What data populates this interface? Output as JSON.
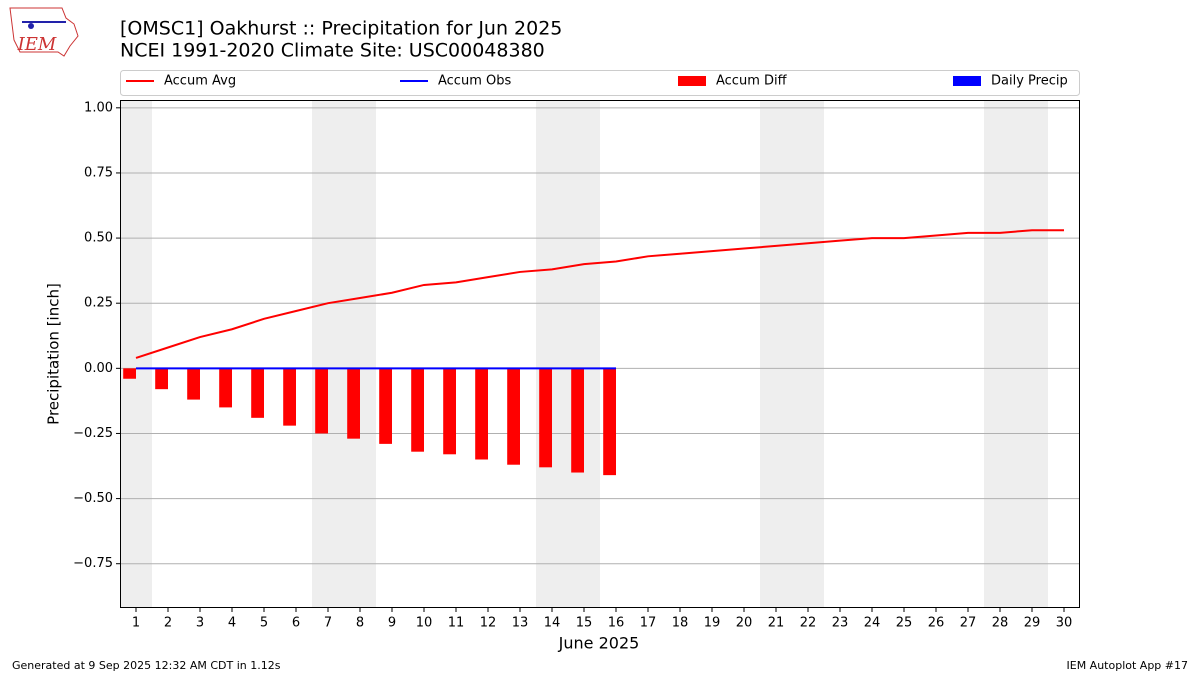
{
  "logo_text": "IEM",
  "footer_left": "Generated at 9 Sep 2025 12:32 AM CDT in 1.12s",
  "footer_right": "IEM Autoplot App #17",
  "chart_data": {
    "type": "bar",
    "title": "[OMSC1] Oakhurst :: Precipitation for Jun 2025",
    "subtitle": "NCEI 1991-2020 Climate Site: USC00048380",
    "xlabel": "June 2025",
    "ylabel": "Precipitation [inch]",
    "x": [
      1,
      2,
      3,
      4,
      5,
      6,
      7,
      8,
      9,
      10,
      11,
      12,
      13,
      14,
      15,
      16,
      17,
      18,
      19,
      20,
      21,
      22,
      23,
      24,
      25,
      26,
      27,
      28,
      29,
      30
    ],
    "xlim": [
      0.5,
      30.5
    ],
    "xticks": [
      1,
      2,
      3,
      4,
      5,
      6,
      7,
      8,
      9,
      10,
      11,
      12,
      13,
      14,
      15,
      16,
      17,
      18,
      19,
      20,
      21,
      22,
      23,
      24,
      25,
      26,
      27,
      28,
      29,
      30
    ],
    "ylim": [
      -0.92,
      1.03
    ],
    "yticks": [
      {
        "value": -0.75,
        "label": "−0.75"
      },
      {
        "value": -0.5,
        "label": "−0.50"
      },
      {
        "value": -0.25,
        "label": "−0.25"
      },
      {
        "value": 0,
        "label": "0.00"
      },
      0.25,
      {
        "value": 0.5,
        "label": "0.50"
      },
      0.75,
      {
        "value": 1,
        "label": "1.00"
      }
    ],
    "grid": true,
    "series": [
      {
        "name": "Accum Avg",
        "type": "line",
        "color": "#ff0000",
        "values": [
          0.04,
          0.08,
          0.12,
          0.15,
          0.19,
          0.22,
          0.25,
          0.27,
          0.29,
          0.32,
          0.33,
          0.35,
          0.37,
          0.38,
          0.4,
          0.41,
          0.43,
          0.44,
          0.45,
          0.46,
          0.47,
          0.48,
          0.49,
          0.5,
          0.5,
          0.51,
          0.52,
          0.52,
          0.53,
          0.53
        ]
      },
      {
        "name": "Accum Obs",
        "type": "line",
        "color": "#0000ff",
        "values": [
          0,
          0,
          0,
          0,
          0,
          0,
          0,
          0,
          0,
          0,
          0,
          0,
          0,
          0,
          0,
          0,
          null,
          null,
          null,
          null,
          null,
          null,
          null,
          null,
          null,
          null,
          null,
          null,
          null,
          null
        ]
      },
      {
        "name": "Accum Diff",
        "type": "bar",
        "color": "#ff0000",
        "values": [
          -0.04,
          -0.08,
          -0.12,
          -0.15,
          -0.19,
          -0.22,
          -0.25,
          -0.27,
          -0.29,
          -0.32,
          -0.33,
          -0.35,
          -0.37,
          -0.38,
          -0.4,
          -0.41,
          null,
          null,
          null,
          null,
          null,
          null,
          null,
          null,
          null,
          null,
          null,
          null,
          null,
          null
        ]
      },
      {
        "name": "Daily Precip",
        "type": "bar",
        "color": "#0000ff",
        "values": [
          0,
          0,
          0,
          0,
          0,
          0,
          0,
          0,
          0,
          0,
          0,
          0,
          0,
          0,
          0,
          0,
          null,
          null,
          null,
          null,
          null,
          null,
          null,
          null,
          null,
          null,
          null,
          null,
          null,
          null
        ]
      }
    ]
  }
}
